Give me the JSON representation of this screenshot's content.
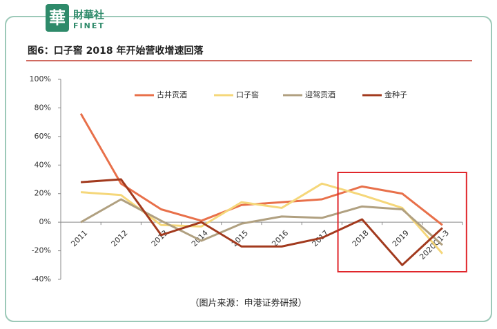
{
  "header": {
    "logo": "華",
    "brand": "財華社",
    "brand_en": "FINET"
  },
  "chart_data": {
    "type": "line",
    "title": "图6：口子窖 2018 年开始营收增速回落",
    "source": "（图片来源：申港证券研报）",
    "categories": [
      "2011",
      "2012",
      "2013",
      "2014",
      "2015",
      "2016",
      "2017",
      "2018",
      "2019",
      "2020Q1-3"
    ],
    "series": [
      {
        "name": "古井贡酒",
        "color": "#e8704a",
        "values": [
          76,
          27,
          9,
          1,
          12,
          14,
          16,
          25,
          20,
          -2
        ]
      },
      {
        "name": "口子窖",
        "color": "#f5d77a",
        "values": [
          21,
          19,
          -2,
          -3,
          14,
          10,
          27,
          19,
          10,
          -22
        ]
      },
      {
        "name": "迎驾贡酒",
        "color": "#b0a080",
        "values": [
          0,
          16,
          1,
          -13,
          -1,
          4,
          3,
          11,
          9,
          -16
        ]
      },
      {
        "name": "金种子",
        "color": "#a23a1e",
        "values": [
          28,
          30,
          -9,
          0,
          -17,
          -17,
          -11,
          2,
          -30,
          -4
        ]
      }
    ],
    "ylim": [
      -40,
      100
    ],
    "yticks": [
      {
        "value": -40,
        "label": "-40%"
      },
      {
        "value": -20,
        "label": "-20%"
      },
      {
        "value": 0,
        "label": "0%"
      },
      {
        "value": 20,
        "label": "20%"
      },
      {
        "value": 40,
        "label": "40%"
      },
      {
        "value": 60,
        "label": "60%"
      },
      {
        "value": 80,
        "label": "80%"
      },
      {
        "value": 100,
        "label": "100%"
      }
    ],
    "legend": "top"
  }
}
